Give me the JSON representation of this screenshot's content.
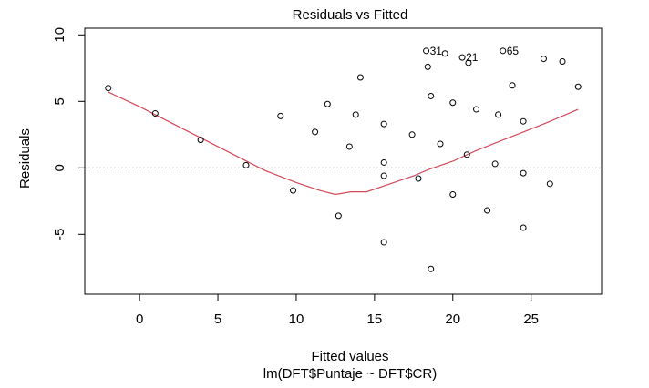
{
  "chart_data": {
    "type": "scatter",
    "title": "Residuals vs Fitted",
    "xlabel": "Fitted values",
    "subtitle": "lm(DFT$Puntaje ~ DFT$CR)",
    "ylabel": "Residuals",
    "xlim": [
      -3.5,
      29.5
    ],
    "ylim": [
      -9.5,
      10.5
    ],
    "x_ticks": [
      0,
      5,
      10,
      15,
      20,
      25
    ],
    "y_ticks": [
      -5,
      0,
      5,
      10
    ],
    "reference_line_y": 0,
    "points": [
      {
        "x": -2.0,
        "y": 6.0
      },
      {
        "x": 1.0,
        "y": 4.1
      },
      {
        "x": 3.9,
        "y": 2.1
      },
      {
        "x": 6.8,
        "y": 0.2
      },
      {
        "x": 9.0,
        "y": 3.9
      },
      {
        "x": 9.8,
        "y": -1.7
      },
      {
        "x": 11.2,
        "y": 2.7
      },
      {
        "x": 12.0,
        "y": 4.8
      },
      {
        "x": 12.7,
        "y": -3.6
      },
      {
        "x": 13.4,
        "y": 1.6
      },
      {
        "x": 13.8,
        "y": 4.0
      },
      {
        "x": 14.1,
        "y": 6.8
      },
      {
        "x": 15.6,
        "y": -5.6
      },
      {
        "x": 15.6,
        "y": 0.4
      },
      {
        "x": 15.6,
        "y": -0.6
      },
      {
        "x": 15.6,
        "y": 3.3
      },
      {
        "x": 17.4,
        "y": 2.5
      },
      {
        "x": 17.8,
        "y": -0.8
      },
      {
        "x": 18.3,
        "y": 8.8,
        "label": "31"
      },
      {
        "x": 18.4,
        "y": 7.6
      },
      {
        "x": 18.6,
        "y": 5.4
      },
      {
        "x": 18.6,
        "y": -7.6
      },
      {
        "x": 19.2,
        "y": 1.8
      },
      {
        "x": 19.5,
        "y": 8.6
      },
      {
        "x": 20.0,
        "y": 4.9
      },
      {
        "x": 20.0,
        "y": -2.0
      },
      {
        "x": 20.6,
        "y": 8.3,
        "label": "21"
      },
      {
        "x": 20.9,
        "y": 1.0
      },
      {
        "x": 21.0,
        "y": 7.9
      },
      {
        "x": 21.5,
        "y": 4.4
      },
      {
        "x": 22.2,
        "y": -3.2
      },
      {
        "x": 22.7,
        "y": 0.3
      },
      {
        "x": 22.9,
        "y": 4.0
      },
      {
        "x": 23.2,
        "y": 8.8,
        "label": "65"
      },
      {
        "x": 23.8,
        "y": 6.2
      },
      {
        "x": 24.5,
        "y": 3.5
      },
      {
        "x": 24.5,
        "y": -0.4
      },
      {
        "x": 24.5,
        "y": -4.5
      },
      {
        "x": 25.8,
        "y": 8.2
      },
      {
        "x": 26.2,
        "y": -1.2
      },
      {
        "x": 27.0,
        "y": 8.0
      },
      {
        "x": 28.0,
        "y": 6.1
      }
    ],
    "smooth_line": [
      {
        "x": -2.0,
        "y": 5.7
      },
      {
        "x": 0.0,
        "y": 4.6
      },
      {
        "x": 2.0,
        "y": 3.4
      },
      {
        "x": 4.0,
        "y": 2.2
      },
      {
        "x": 6.0,
        "y": 1.0
      },
      {
        "x": 8.0,
        "y": -0.2
      },
      {
        "x": 10.0,
        "y": -1.1
      },
      {
        "x": 11.5,
        "y": -1.7
      },
      {
        "x": 12.5,
        "y": -2.0
      },
      {
        "x": 13.5,
        "y": -1.8
      },
      {
        "x": 14.5,
        "y": -1.8
      },
      {
        "x": 16.0,
        "y": -1.2
      },
      {
        "x": 17.5,
        "y": -0.6
      },
      {
        "x": 18.5,
        "y": -0.1
      },
      {
        "x": 20.0,
        "y": 0.5
      },
      {
        "x": 21.5,
        "y": 1.3
      },
      {
        "x": 23.0,
        "y": 2.0
      },
      {
        "x": 24.5,
        "y": 2.7
      },
      {
        "x": 26.0,
        "y": 3.4
      },
      {
        "x": 28.0,
        "y": 4.4
      }
    ],
    "colors": {
      "points": "#000000",
      "smooth_line": "#d14a5a",
      "reference_line": "#9a9a9a",
      "axes": "#000000"
    }
  }
}
